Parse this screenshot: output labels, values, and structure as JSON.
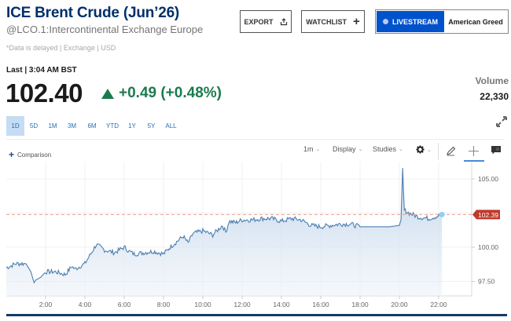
{
  "header": {
    "title": "ICE Brent Crude (Jun’26)",
    "subtitle": "@LCO.1:Intercontinental Exchange Europe",
    "delay_note": "*Data is delayed | Exchange | USD",
    "export_label": "EXPORT",
    "watchlist_label": "WATCHLIST",
    "livestream_label": "LIVESTREAM",
    "american_greed_label": "American Greed"
  },
  "quote": {
    "last_label": "Last | 3:04 AM BST",
    "price": "102.40",
    "change": "+0.49 (+0.48%)",
    "change_color": "#1b7b4e",
    "volume_label": "Volume",
    "volume_value": "22,330"
  },
  "ranges": [
    {
      "label": "1D",
      "active": true
    },
    {
      "label": "5D",
      "active": false
    },
    {
      "label": "1M",
      "active": false
    },
    {
      "label": "3M",
      "active": false
    },
    {
      "label": "6M",
      "active": false
    },
    {
      "label": "YTD",
      "active": false
    },
    {
      "label": "1Y",
      "active": false
    },
    {
      "label": "5Y",
      "active": false
    },
    {
      "label": "ALL",
      "active": false
    }
  ],
  "toolbar": {
    "comparison_label": "Comparison",
    "interval_label": "1m",
    "display_label": "Display",
    "studies_label": "Studies"
  },
  "chart_data": {
    "type": "area",
    "title": "ICE Brent Crude (Jun’26) intraday 1D",
    "xlabel": "",
    "ylabel": "",
    "x_ticks": [
      "2:00",
      "4:00",
      "6:00",
      "8:00",
      "10:00",
      "12:00",
      "14:00",
      "16:00",
      "18:00",
      "20:00",
      "22:00"
    ],
    "y_ticks": [
      "97.50",
      "100.00",
      "105.00"
    ],
    "ylim": [
      96.8,
      106.6
    ],
    "grid": true,
    "last_price_marker": "102.39",
    "last_price_color": "#c0392b",
    "line_color": "#4a7fb0",
    "x": [
      "0:00",
      "0:30",
      "1:00",
      "1:15",
      "1:25",
      "1:30",
      "1:45",
      "2:00",
      "2:30",
      "3:00",
      "3:20",
      "3:30",
      "3:45",
      "4:00",
      "4:20",
      "4:35",
      "5:00",
      "5:30",
      "6:00",
      "6:15",
      "6:30",
      "7:00",
      "7:30",
      "8:00",
      "8:20",
      "8:40",
      "9:00",
      "9:15",
      "9:30",
      "10:00",
      "10:30",
      "11:00",
      "11:10",
      "11:20",
      "11:40",
      "12:00",
      "12:30",
      "13:00",
      "13:30",
      "14:00",
      "14:30",
      "15:00",
      "15:30",
      "16:00",
      "16:30",
      "17:00",
      "17:30",
      "18:00",
      "18:30",
      "19:00",
      "19:30",
      "20:00",
      "20:05",
      "20:10",
      "20:15",
      "20:30",
      "21:00",
      "21:30",
      "22:00",
      "22:10"
    ],
    "values": [
      98.5,
      98.8,
      98.8,
      98.2,
      97.4,
      97.6,
      97.8,
      98.2,
      98.2,
      98.0,
      98.6,
      98.4,
      98.6,
      98.8,
      99.6,
      100.2,
      99.8,
      99.6,
      100.0,
      99.7,
      99.5,
      99.6,
      99.7,
      99.5,
      100.0,
      100.4,
      100.8,
      100.3,
      101.0,
      101.2,
      100.9,
      101.6,
      101.1,
      101.9,
      101.8,
      102.0,
      102.0,
      102.1,
      102.1,
      101.9,
      102.1,
      102.0,
      101.6,
      101.5,
      101.6,
      101.7,
      101.7,
      101.5,
      101.5,
      101.5,
      101.5,
      101.6,
      102.0,
      105.8,
      102.7,
      102.5,
      102.2,
      102.1,
      102.3,
      102.39
    ]
  }
}
